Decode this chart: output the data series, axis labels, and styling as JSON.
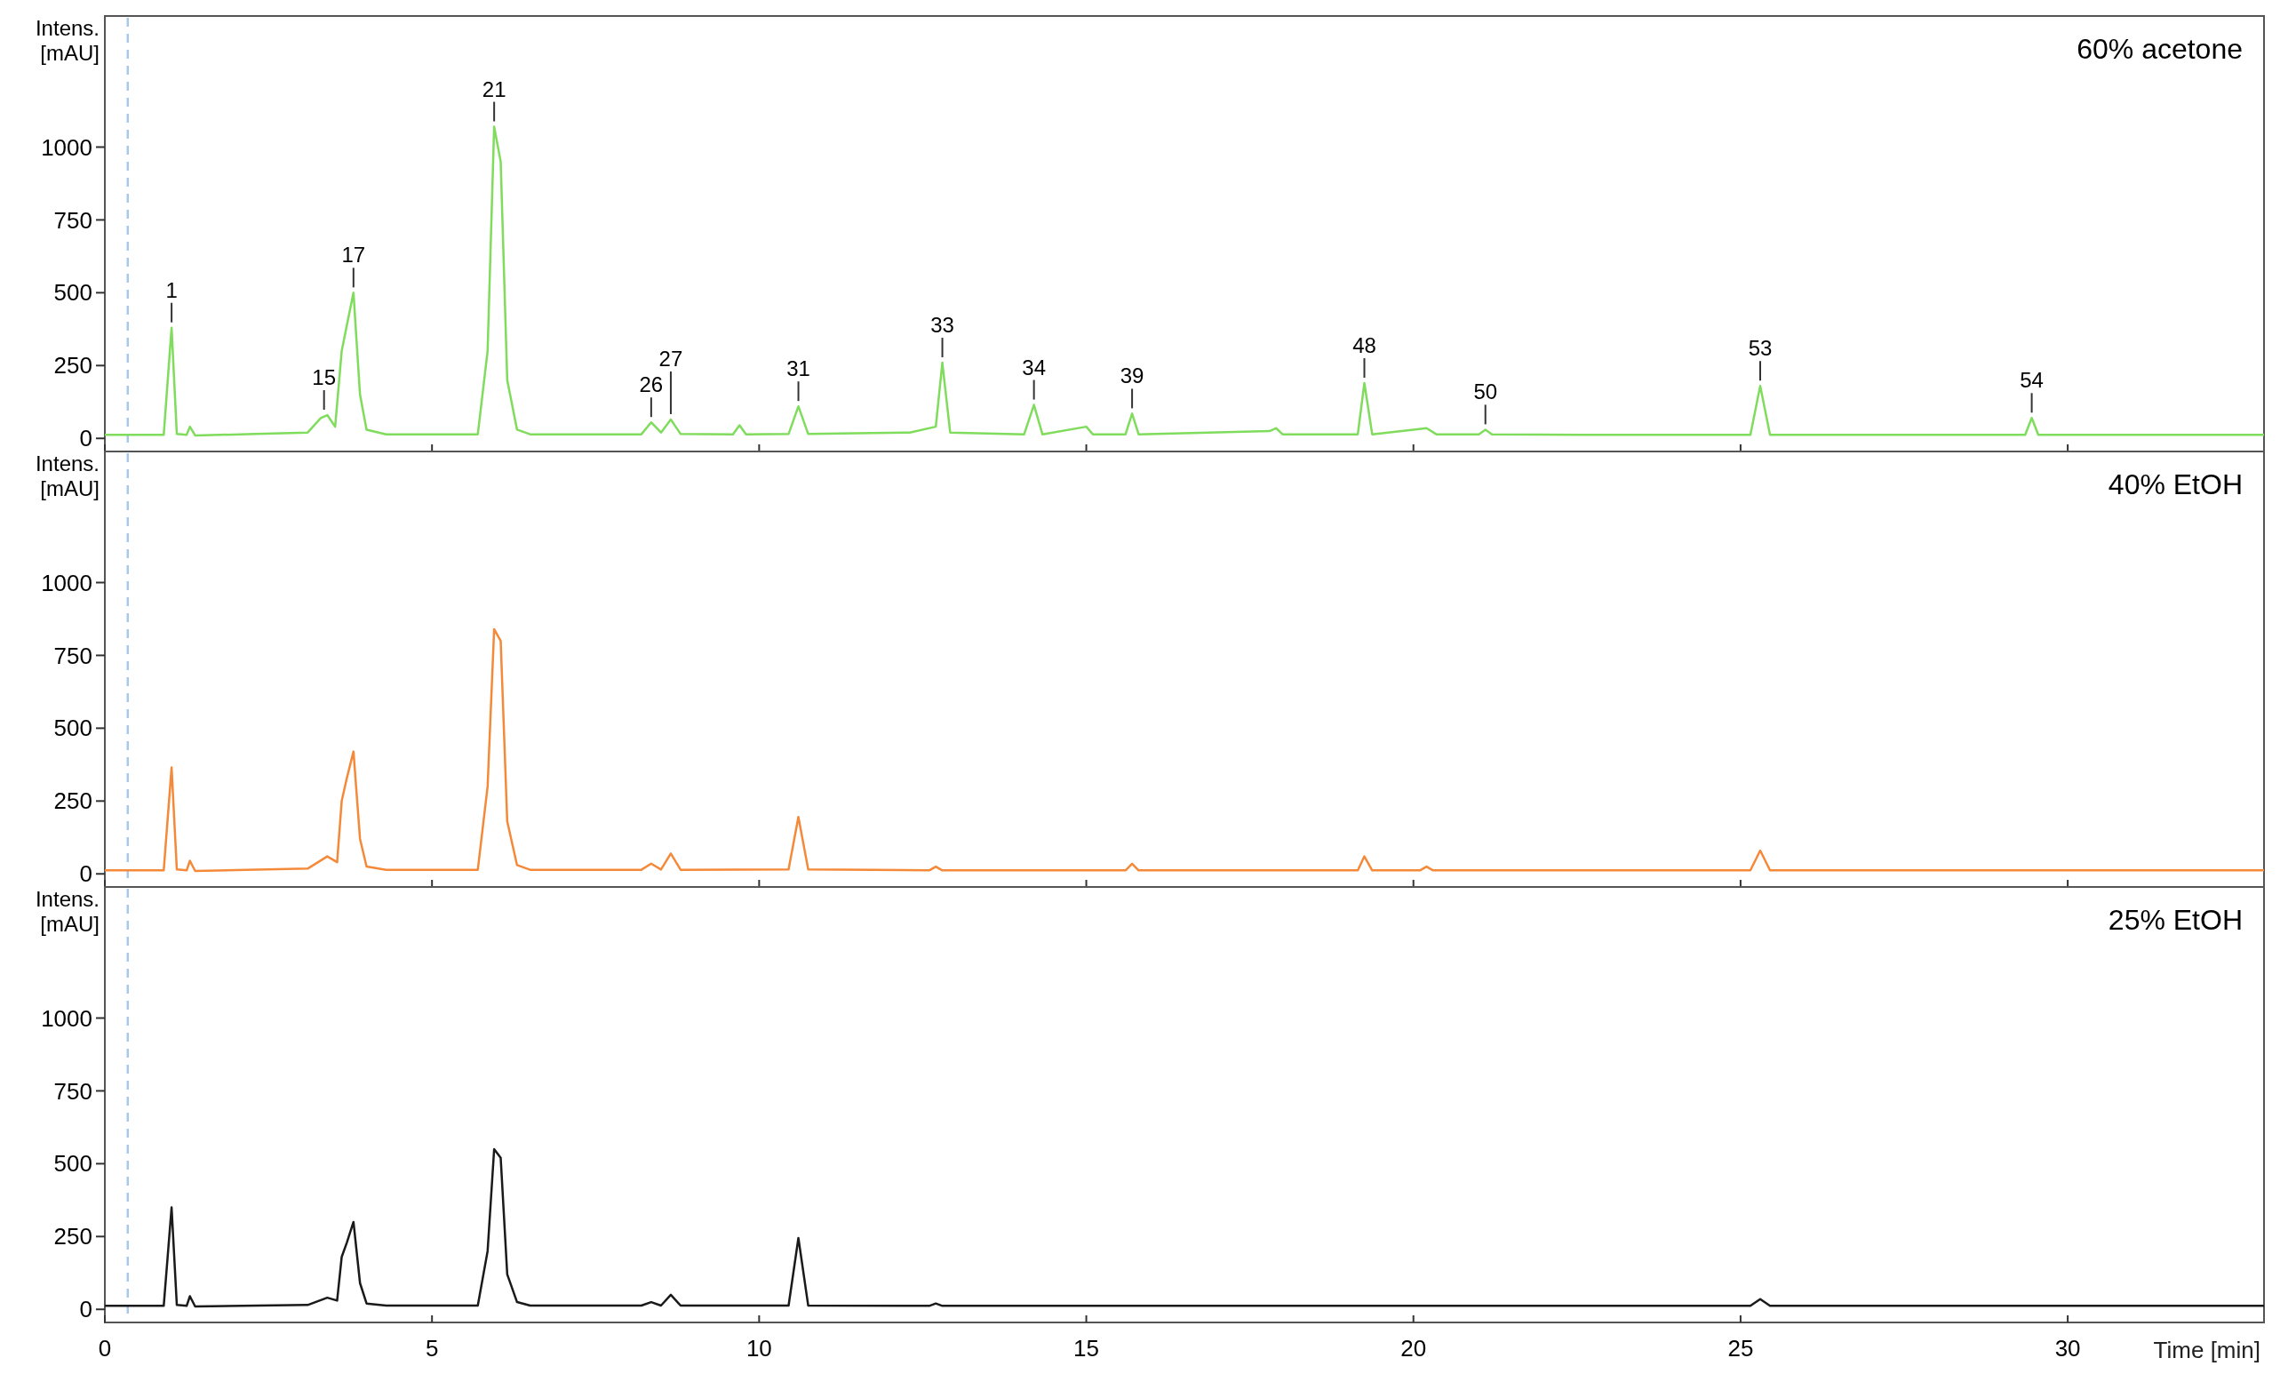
{
  "chart_data": [
    {
      "type": "line",
      "title": "60% acetone",
      "ylabel": "Intens. [mAU]",
      "color": "#7fdc5c",
      "xlim": [
        0,
        33
      ],
      "ylim": [
        -45,
        1450
      ],
      "xticks": [
        0,
        5,
        10,
        15,
        20,
        25,
        30
      ],
      "yticks": [
        0,
        250,
        500,
        750,
        1000
      ],
      "tick_labels": "y",
      "grid": false,
      "x": [
        0,
        0.9,
        1.02,
        1.1,
        1.25,
        1.3,
        1.38,
        2.3,
        3.1,
        3.3,
        3.4,
        3.52,
        3.62,
        3.7,
        3.8,
        3.9,
        4.0,
        4.3,
        5.7,
        5.85,
        5.95,
        6.05,
        6.15,
        6.3,
        6.5,
        8.2,
        8.35,
        8.5,
        8.65,
        8.8,
        9.6,
        9.7,
        9.8,
        10.45,
        10.6,
        10.75,
        12.3,
        12.7,
        12.8,
        12.92,
        14.05,
        14.2,
        14.33,
        15.0,
        15.1,
        15.6,
        15.7,
        15.8,
        17.8,
        17.9,
        18.0,
        19.15,
        19.25,
        19.37,
        20.0,
        20.2,
        20.35,
        21.0,
        21.1,
        21.2,
        22.6,
        25.15,
        25.3,
        25.45,
        29.35,
        29.45,
        29.55,
        33
      ],
      "values": [
        12,
        12,
        380,
        15,
        12,
        40,
        10,
        15,
        20,
        70,
        80,
        40,
        300,
        390,
        500,
        150,
        30,
        14,
        14,
        300,
        1070,
        950,
        200,
        30,
        14,
        14,
        55,
        20,
        65,
        15,
        14,
        45,
        14,
        15,
        110,
        15,
        20,
        40,
        260,
        20,
        14,
        115,
        14,
        40,
        14,
        14,
        85,
        14,
        25,
        35,
        14,
        14,
        190,
        14,
        30,
        35,
        14,
        14,
        30,
        14,
        12,
        12,
        180,
        12,
        12,
        70,
        12,
        12
      ],
      "ref_lines": [
        {
          "axis": "x",
          "value": 0.35,
          "color": "#a8c8ec",
          "line_style": "dashed"
        }
      ],
      "annotations": [
        {
          "text": "1",
          "x": 1.02,
          "y": 380
        },
        {
          "text": "15",
          "x": 3.35,
          "y": 80
        },
        {
          "text": "17",
          "x": 3.8,
          "y": 500
        },
        {
          "text": "21",
          "x": 5.95,
          "y": 1070
        },
        {
          "text": "26",
          "x": 8.35,
          "y": 55
        },
        {
          "text": "27",
          "x": 8.65,
          "y": 65
        },
        {
          "text": "31",
          "x": 10.6,
          "y": 110
        },
        {
          "text": "33",
          "x": 12.8,
          "y": 260
        },
        {
          "text": "34",
          "x": 14.2,
          "y": 115
        },
        {
          "text": "39",
          "x": 15.7,
          "y": 85
        },
        {
          "text": "48",
          "x": 19.25,
          "y": 190
        },
        {
          "text": "50",
          "x": 21.1,
          "y": 30
        },
        {
          "text": "53",
          "x": 25.3,
          "y": 180
        },
        {
          "text": "54",
          "x": 29.45,
          "y": 70
        }
      ]
    },
    {
      "type": "line",
      "title": "40% EtOH",
      "ylabel": "Intens. [mAU]",
      "color": "#f5893a",
      "xlim": [
        0,
        33
      ],
      "ylim": [
        -45,
        1450
      ],
      "xticks": [
        0,
        5,
        10,
        15,
        20,
        25,
        30
      ],
      "yticks": [
        0,
        250,
        500,
        750,
        1000
      ],
      "tick_labels": "y",
      "grid": false,
      "x": [
        0,
        0.9,
        1.02,
        1.1,
        1.25,
        1.3,
        1.38,
        3.1,
        3.4,
        3.55,
        3.62,
        3.7,
        3.8,
        3.9,
        4.0,
        4.3,
        5.7,
        5.85,
        5.95,
        6.05,
        6.15,
        6.3,
        6.5,
        8.2,
        8.35,
        8.5,
        8.65,
        8.8,
        10.45,
        10.6,
        10.75,
        12.6,
        12.7,
        12.8,
        15.6,
        15.7,
        15.8,
        19.15,
        19.25,
        19.37,
        20.1,
        20.2,
        20.3,
        25.15,
        25.3,
        25.45,
        33
      ],
      "values": [
        12,
        12,
        365,
        15,
        12,
        45,
        10,
        18,
        60,
        40,
        250,
        330,
        420,
        120,
        25,
        14,
        14,
        300,
        840,
        800,
        180,
        30,
        14,
        14,
        35,
        15,
        70,
        14,
        15,
        195,
        15,
        12,
        25,
        12,
        12,
        35,
        12,
        12,
        60,
        12,
        12,
        25,
        12,
        12,
        80,
        12,
        12
      ],
      "ref_lines": [
        {
          "axis": "x",
          "value": 0.35,
          "color": "#a8c8ec",
          "line_style": "dashed"
        }
      ]
    },
    {
      "type": "line",
      "title": "25% EtOH",
      "ylabel": "Intens. [mAU]",
      "xlabel": "Time [min]",
      "color": "#1a1a1a",
      "xlim": [
        0,
        33
      ],
      "ylim": [
        -45,
        1450
      ],
      "xticks": [
        0,
        5,
        10,
        15,
        20,
        25,
        30
      ],
      "yticks": [
        0,
        250,
        500,
        750,
        1000
      ],
      "grid": false,
      "x": [
        0,
        0.9,
        1.02,
        1.1,
        1.25,
        1.3,
        1.38,
        3.1,
        3.4,
        3.55,
        3.62,
        3.7,
        3.8,
        3.9,
        4.0,
        4.3,
        5.7,
        5.85,
        5.95,
        6.05,
        6.15,
        6.3,
        6.5,
        8.2,
        8.35,
        8.5,
        8.65,
        8.8,
        10.45,
        10.6,
        10.75,
        12.6,
        12.7,
        12.8,
        25.15,
        25.3,
        25.45,
        33
      ],
      "values": [
        12,
        12,
        350,
        15,
        12,
        45,
        10,
        15,
        40,
        30,
        180,
        230,
        300,
        90,
        20,
        13,
        13,
        200,
        550,
        520,
        120,
        25,
        13,
        13,
        25,
        13,
        50,
        13,
        13,
        245,
        13,
        12,
        20,
        12,
        12,
        35,
        12,
        12
      ],
      "ref_lines": [
        {
          "axis": "x",
          "value": 0.35,
          "color": "#a8c8ec",
          "line_style": "dashed"
        }
      ]
    }
  ]
}
